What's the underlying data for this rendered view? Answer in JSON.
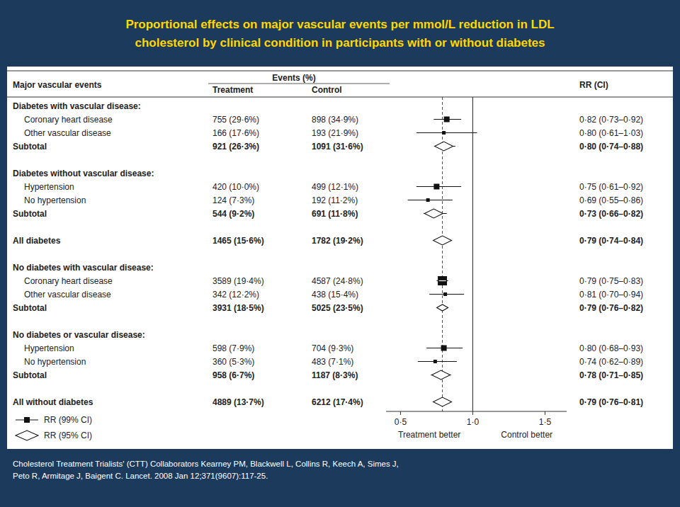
{
  "chart_data": {
    "type": "forest",
    "title": "Proportional effects on major vascular events per mmol/L reduction in LDL\ncholesterol by clinical condition in participants with or without diabetes",
    "title_color": "#FFD700",
    "header_color": "#1B3A5C",
    "annotations": [
      "Cholesterol Treatment Trialists' (CTT) Collaborators Kearney PM, Blackwell L, Collins R, Keech A, Simes J,\nPeto R, Armitage J, Baigent C. Lancet. 2008 Jan 12;371(9607):117-25."
    ],
    "columns": {
      "label": "Major vascular events",
      "group": "Events (%)",
      "treatment": "Treatment",
      "control": "Control",
      "estimate": "RR (CI)"
    },
    "rows": [
      {
        "label": "Diabetes with vascular disease:",
        "type": "section_header"
      },
      {
        "label": "Coronary heart disease",
        "type": "data",
        "treatment": "755 (29·6%)",
        "control": "898 (34·9%)",
        "rr_text": "0·82 (0·73–0·92)",
        "rr": 0.82,
        "ci_low": 0.73,
        "ci_high": 0.92,
        "marker": "square_medium"
      },
      {
        "label": "Other vascular disease",
        "type": "data",
        "treatment": "166 (17·6%)",
        "control": "193 (21·9%)",
        "rr_text": "0·80 (0·61–1·03)",
        "rr": 0.8,
        "ci_low": 0.61,
        "ci_high": 1.03,
        "marker": "square_small"
      },
      {
        "label": "Subtotal",
        "type": "subtotal",
        "treatment": "921 (26·3%)",
        "control": "1091 (31·6%)",
        "rr_text": "0·80 (0·74–0·88)",
        "rr": 0.8,
        "ci_low": 0.74,
        "ci_high": 0.88,
        "marker": "diamond_medium"
      },
      null,
      {
        "label": "Diabetes without vascular disease:",
        "type": "section_header"
      },
      {
        "label": "Hypertension",
        "type": "data",
        "treatment": "420 (10·0%)",
        "control": "499 (12·1%)",
        "rr_text": "0·75 (0·61–0·92)",
        "rr": 0.75,
        "ci_low": 0.61,
        "ci_high": 0.92,
        "marker": "square_medium"
      },
      {
        "label": "No hypertension",
        "type": "data",
        "treatment": "124 (7·3%)",
        "control": "192 (11·2%)",
        "rr_text": "0·69 (0·55–0·86)",
        "rr": 0.69,
        "ci_low": 0.55,
        "ci_high": 0.86,
        "marker": "square_small"
      },
      {
        "label": "Subtotal",
        "type": "subtotal",
        "treatment": "544 (9·2%)",
        "control": "691 (11·8%)",
        "rr_text": "0·73 (0·66–0·82)",
        "rr": 0.73,
        "ci_low": 0.66,
        "ci_high": 0.82,
        "marker": "diamond_medium"
      },
      null,
      {
        "label": "All diabetes",
        "type": "summary",
        "treatment": "1465 (15·6%)",
        "control": "1782 (19·2%)",
        "rr_text": "0·79 (0·74–0·84)",
        "rr": 0.79,
        "ci_low": 0.74,
        "ci_high": 0.84,
        "marker": "diamond_medium"
      },
      null,
      {
        "label": "No diabetes with vascular disease:",
        "type": "section_header"
      },
      {
        "label": "Coronary heart disease",
        "type": "data",
        "treatment": "3589 (19·4%)",
        "control": "4587 (24·8%)",
        "rr_text": "0·79 (0·75–0·83)",
        "rr": 0.79,
        "ci_low": 0.75,
        "ci_high": 0.83,
        "marker": "square_large"
      },
      {
        "label": "Other vascular disease",
        "type": "data",
        "treatment": "342 (12·2%)",
        "control": "438 (15·4%)",
        "rr_text": "0·81 (0·70–0·94)",
        "rr": 0.81,
        "ci_low": 0.7,
        "ci_high": 0.94,
        "marker": "square_small"
      },
      {
        "label": "Subtotal",
        "type": "subtotal",
        "treatment": "3931 (18·5%)",
        "control": "5025 (23·5%)",
        "rr_text": "0·79 (0·76–0·82)",
        "rr": 0.79,
        "ci_low": 0.76,
        "ci_high": 0.82,
        "marker": "diamond_small"
      },
      null,
      {
        "label": "No diabetes or vascular disease:",
        "type": "section_header"
      },
      {
        "label": "Hypertension",
        "type": "data",
        "treatment": "598 (7·9%)",
        "control": "704 (9·3%)",
        "rr_text": "0·80 (0·68–0·93)",
        "rr": 0.8,
        "ci_low": 0.68,
        "ci_high": 0.93,
        "marker": "square_medium"
      },
      {
        "label": "No hypertension",
        "type": "data",
        "treatment": "360 (5·3%)",
        "control": "483 (7·1%)",
        "rr_text": "0·74 (0·62–0·89)",
        "rr": 0.74,
        "ci_low": 0.62,
        "ci_high": 0.89,
        "marker": "square_small"
      },
      {
        "label": "Subtotal",
        "type": "subtotal",
        "treatment": "958 (6·7%)",
        "control": "1187 (8·3%)",
        "rr_text": "0·78 (0·71–0·85)",
        "rr": 0.78,
        "ci_low": 0.71,
        "ci_high": 0.85,
        "marker": "diamond_medium"
      },
      null,
      {
        "label": "All without diabetes",
        "type": "summary",
        "treatment": "4889 (13·7%)",
        "control": "6212 (17·4%)",
        "rr_text": "0·79 (0·76–0·81)",
        "rr": 0.79,
        "ci_low": 0.76,
        "ci_high": 0.81,
        "marker": "diamond_medium"
      }
    ],
    "xlim": [
      0.4,
      1.65
    ],
    "xticks": [
      {
        "value": 0.5,
        "label": "0·5"
      },
      {
        "value": 1.0,
        "label": "1·0"
      },
      {
        "value": 1.5,
        "label": "1·5"
      }
    ],
    "xlabel_left": "Treatment better",
    "xlabel_right": "Control better",
    "reference_lines": [
      {
        "value": 1.0,
        "line_style": "solid"
      },
      {
        "value": 0.79,
        "line_style": "dashed"
      }
    ],
    "legend_items": [
      {
        "label": "RR (99% CI)",
        "marker": "square"
      },
      {
        "label": "RR (95% CI)",
        "marker": "diamond"
      }
    ]
  }
}
